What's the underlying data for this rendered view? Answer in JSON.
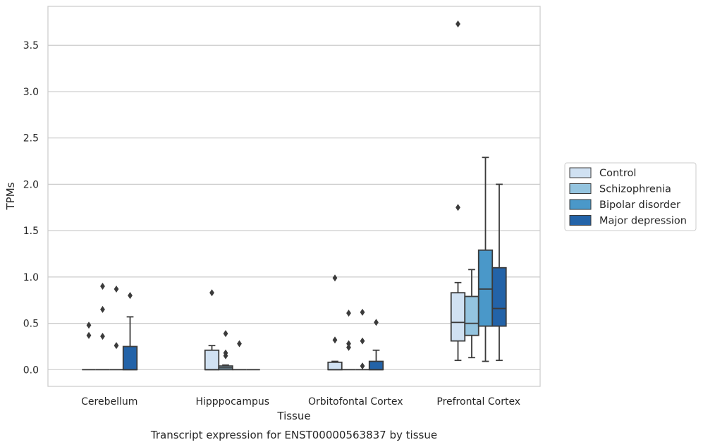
{
  "caption": "Transcript expression for ENST00000563837 by tissue",
  "chart_data": {
    "type": "box",
    "title": "",
    "xlabel": "Tissue",
    "ylabel": "TPMs",
    "ylim": [
      -0.18,
      3.92
    ],
    "yticks": [
      0.0,
      0.5,
      1.0,
      1.5,
      2.0,
      2.5,
      3.0,
      3.5
    ],
    "ytick_labels": [
      "0.0",
      "0.5",
      "1.0",
      "1.5",
      "2.0",
      "2.5",
      "3.0",
      "3.5"
    ],
    "grid": "horizontal",
    "legend_position": "right",
    "categories": [
      "Cerebellum",
      "Hipppocampus",
      "Orbitofontal Cortex",
      "Prefrontal Cortex"
    ],
    "series": [
      {
        "name": "Control",
        "color": "#d0e1f2",
        "boxes": [
          {
            "category": "Cerebellum",
            "whisker_low": 0.0,
            "q1": 0.0,
            "median": 0.0,
            "q3": 0.0,
            "whisker_high": 0.0,
            "outliers": [
              0.48,
              0.37
            ]
          },
          {
            "category": "Hipppocampus",
            "whisker_low": 0.0,
            "q1": 0.0,
            "median": 0.0,
            "q3": 0.21,
            "whisker_high": 0.26,
            "outliers": [
              0.83
            ]
          },
          {
            "category": "Orbitofontal Cortex",
            "whisker_low": 0.0,
            "q1": 0.0,
            "median": 0.0,
            "q3": 0.08,
            "whisker_high": 0.09,
            "outliers": [
              0.99,
              0.32
            ]
          },
          {
            "category": "Prefrontal Cortex",
            "whisker_low": 0.1,
            "q1": 0.31,
            "median": 0.51,
            "q3": 0.83,
            "whisker_high": 0.94,
            "outliers": [
              3.73,
              1.75
            ]
          }
        ]
      },
      {
        "name": "Schizophrenia",
        "color": "#94c4df",
        "boxes": [
          {
            "category": "Cerebellum",
            "whisker_low": 0.0,
            "q1": 0.0,
            "median": 0.0,
            "q3": 0.0,
            "whisker_high": 0.0,
            "outliers": [
              0.9,
              0.65,
              0.36
            ]
          },
          {
            "category": "Hipppocampus",
            "whisker_low": 0.0,
            "q1": 0.0,
            "median": 0.02,
            "q3": 0.04,
            "whisker_high": 0.05,
            "outliers": [
              0.39,
              0.18,
              0.15
            ]
          },
          {
            "category": "Orbitofontal Cortex",
            "whisker_low": 0.0,
            "q1": 0.0,
            "median": 0.0,
            "q3": 0.0,
            "whisker_high": 0.0,
            "outliers": [
              0.61,
              0.28,
              0.24
            ]
          },
          {
            "category": "Prefrontal Cortex",
            "whisker_low": 0.13,
            "q1": 0.37,
            "median": 0.5,
            "q3": 0.79,
            "whisker_high": 1.08,
            "outliers": []
          }
        ]
      },
      {
        "name": "Bipolar disorder",
        "color": "#4a98c9",
        "boxes": [
          {
            "category": "Cerebellum",
            "whisker_low": 0.0,
            "q1": 0.0,
            "median": 0.0,
            "q3": 0.0,
            "whisker_high": 0.0,
            "outliers": [
              0.87,
              0.26
            ]
          },
          {
            "category": "Hipppocampus",
            "whisker_low": 0.0,
            "q1": 0.0,
            "median": 0.0,
            "q3": 0.0,
            "whisker_high": 0.0,
            "outliers": [
              0.28
            ]
          },
          {
            "category": "Orbitofontal Cortex",
            "whisker_low": 0.0,
            "q1": 0.0,
            "median": 0.0,
            "q3": 0.0,
            "whisker_high": 0.0,
            "outliers": [
              0.62,
              0.31,
              0.04
            ]
          },
          {
            "category": "Prefrontal Cortex",
            "whisker_low": 0.09,
            "q1": 0.47,
            "median": 0.87,
            "q3": 1.29,
            "whisker_high": 2.29,
            "outliers": []
          }
        ]
      },
      {
        "name": "Major depression",
        "color": "#2363a8",
        "boxes": [
          {
            "category": "Cerebellum",
            "whisker_low": 0.0,
            "q1": 0.0,
            "median": 0.0,
            "q3": 0.25,
            "whisker_high": 0.57,
            "outliers": [
              0.8
            ]
          },
          {
            "category": "Hipppocampus",
            "whisker_low": 0.0,
            "q1": 0.0,
            "median": 0.0,
            "q3": 0.0,
            "whisker_high": 0.0,
            "outliers": []
          },
          {
            "category": "Orbitofontal Cortex",
            "whisker_low": 0.0,
            "q1": 0.0,
            "median": 0.0,
            "q3": 0.09,
            "whisker_high": 0.21,
            "outliers": [
              0.51
            ]
          },
          {
            "category": "Prefrontal Cortex",
            "whisker_low": 0.1,
            "q1": 0.47,
            "median": 0.66,
            "q3": 1.1,
            "whisker_high": 2.0,
            "outliers": []
          }
        ]
      }
    ]
  }
}
